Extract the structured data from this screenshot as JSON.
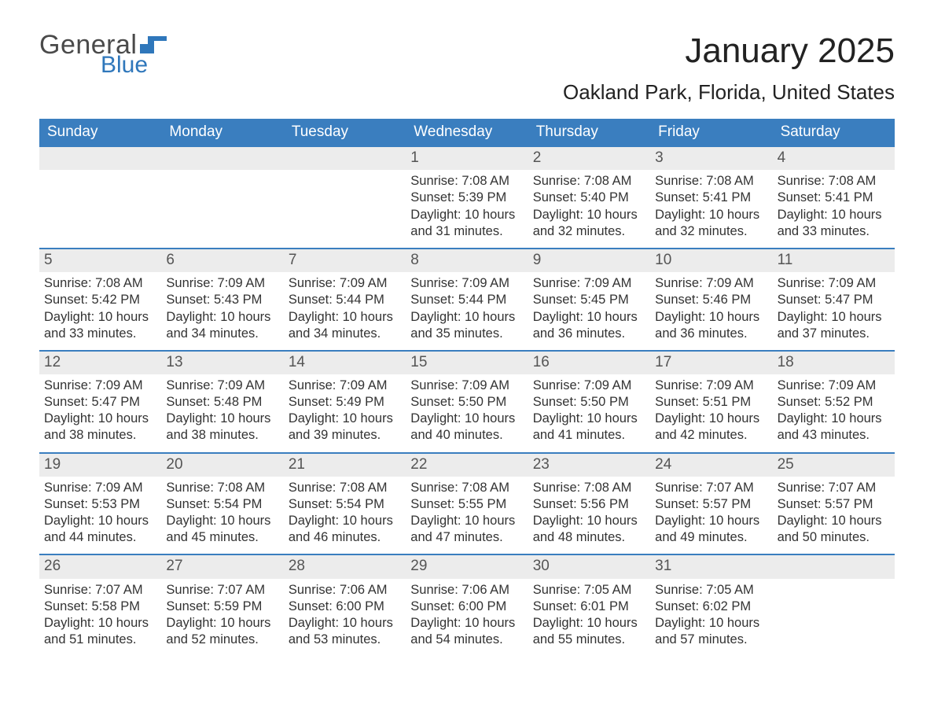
{
  "logo": {
    "word1": "General",
    "word2": "Blue",
    "text_color": "#4a4a4a",
    "accent_color": "#2f77bb"
  },
  "title": "January 2025",
  "location": "Oakland Park, Florida, United States",
  "colors": {
    "header_bg": "#3a7ebf",
    "header_text": "#ffffff",
    "row_divider": "#3a7ebf",
    "daynum_bg": "#ececec",
    "daynum_text": "#555555",
    "body_text": "#333333",
    "page_bg": "#ffffff"
  },
  "fonts": {
    "title_size_pt": 33,
    "location_size_pt": 20,
    "dow_size_pt": 14,
    "body_size_pt": 12
  },
  "days_of_week": [
    "Sunday",
    "Monday",
    "Tuesday",
    "Wednesday",
    "Thursday",
    "Friday",
    "Saturday"
  ],
  "weeks": [
    [
      null,
      null,
      null,
      {
        "n": "1",
        "sr": "Sunrise: 7:08 AM",
        "ss": "Sunset: 5:39 PM",
        "d1": "Daylight: 10 hours",
        "d2": "and 31 minutes."
      },
      {
        "n": "2",
        "sr": "Sunrise: 7:08 AM",
        "ss": "Sunset: 5:40 PM",
        "d1": "Daylight: 10 hours",
        "d2": "and 32 minutes."
      },
      {
        "n": "3",
        "sr": "Sunrise: 7:08 AM",
        "ss": "Sunset: 5:41 PM",
        "d1": "Daylight: 10 hours",
        "d2": "and 32 minutes."
      },
      {
        "n": "4",
        "sr": "Sunrise: 7:08 AM",
        "ss": "Sunset: 5:41 PM",
        "d1": "Daylight: 10 hours",
        "d2": "and 33 minutes."
      }
    ],
    [
      {
        "n": "5",
        "sr": "Sunrise: 7:08 AM",
        "ss": "Sunset: 5:42 PM",
        "d1": "Daylight: 10 hours",
        "d2": "and 33 minutes."
      },
      {
        "n": "6",
        "sr": "Sunrise: 7:09 AM",
        "ss": "Sunset: 5:43 PM",
        "d1": "Daylight: 10 hours",
        "d2": "and 34 minutes."
      },
      {
        "n": "7",
        "sr": "Sunrise: 7:09 AM",
        "ss": "Sunset: 5:44 PM",
        "d1": "Daylight: 10 hours",
        "d2": "and 34 minutes."
      },
      {
        "n": "8",
        "sr": "Sunrise: 7:09 AM",
        "ss": "Sunset: 5:44 PM",
        "d1": "Daylight: 10 hours",
        "d2": "and 35 minutes."
      },
      {
        "n": "9",
        "sr": "Sunrise: 7:09 AM",
        "ss": "Sunset: 5:45 PM",
        "d1": "Daylight: 10 hours",
        "d2": "and 36 minutes."
      },
      {
        "n": "10",
        "sr": "Sunrise: 7:09 AM",
        "ss": "Sunset: 5:46 PM",
        "d1": "Daylight: 10 hours",
        "d2": "and 36 minutes."
      },
      {
        "n": "11",
        "sr": "Sunrise: 7:09 AM",
        "ss": "Sunset: 5:47 PM",
        "d1": "Daylight: 10 hours",
        "d2": "and 37 minutes."
      }
    ],
    [
      {
        "n": "12",
        "sr": "Sunrise: 7:09 AM",
        "ss": "Sunset: 5:47 PM",
        "d1": "Daylight: 10 hours",
        "d2": "and 38 minutes."
      },
      {
        "n": "13",
        "sr": "Sunrise: 7:09 AM",
        "ss": "Sunset: 5:48 PM",
        "d1": "Daylight: 10 hours",
        "d2": "and 38 minutes."
      },
      {
        "n": "14",
        "sr": "Sunrise: 7:09 AM",
        "ss": "Sunset: 5:49 PM",
        "d1": "Daylight: 10 hours",
        "d2": "and 39 minutes."
      },
      {
        "n": "15",
        "sr": "Sunrise: 7:09 AM",
        "ss": "Sunset: 5:50 PM",
        "d1": "Daylight: 10 hours",
        "d2": "and 40 minutes."
      },
      {
        "n": "16",
        "sr": "Sunrise: 7:09 AM",
        "ss": "Sunset: 5:50 PM",
        "d1": "Daylight: 10 hours",
        "d2": "and 41 minutes."
      },
      {
        "n": "17",
        "sr": "Sunrise: 7:09 AM",
        "ss": "Sunset: 5:51 PM",
        "d1": "Daylight: 10 hours",
        "d2": "and 42 minutes."
      },
      {
        "n": "18",
        "sr": "Sunrise: 7:09 AM",
        "ss": "Sunset: 5:52 PM",
        "d1": "Daylight: 10 hours",
        "d2": "and 43 minutes."
      }
    ],
    [
      {
        "n": "19",
        "sr": "Sunrise: 7:09 AM",
        "ss": "Sunset: 5:53 PM",
        "d1": "Daylight: 10 hours",
        "d2": "and 44 minutes."
      },
      {
        "n": "20",
        "sr": "Sunrise: 7:08 AM",
        "ss": "Sunset: 5:54 PM",
        "d1": "Daylight: 10 hours",
        "d2": "and 45 minutes."
      },
      {
        "n": "21",
        "sr": "Sunrise: 7:08 AM",
        "ss": "Sunset: 5:54 PM",
        "d1": "Daylight: 10 hours",
        "d2": "and 46 minutes."
      },
      {
        "n": "22",
        "sr": "Sunrise: 7:08 AM",
        "ss": "Sunset: 5:55 PM",
        "d1": "Daylight: 10 hours",
        "d2": "and 47 minutes."
      },
      {
        "n": "23",
        "sr": "Sunrise: 7:08 AM",
        "ss": "Sunset: 5:56 PM",
        "d1": "Daylight: 10 hours",
        "d2": "and 48 minutes."
      },
      {
        "n": "24",
        "sr": "Sunrise: 7:07 AM",
        "ss": "Sunset: 5:57 PM",
        "d1": "Daylight: 10 hours",
        "d2": "and 49 minutes."
      },
      {
        "n": "25",
        "sr": "Sunrise: 7:07 AM",
        "ss": "Sunset: 5:57 PM",
        "d1": "Daylight: 10 hours",
        "d2": "and 50 minutes."
      }
    ],
    [
      {
        "n": "26",
        "sr": "Sunrise: 7:07 AM",
        "ss": "Sunset: 5:58 PM",
        "d1": "Daylight: 10 hours",
        "d2": "and 51 minutes."
      },
      {
        "n": "27",
        "sr": "Sunrise: 7:07 AM",
        "ss": "Sunset: 5:59 PM",
        "d1": "Daylight: 10 hours",
        "d2": "and 52 minutes."
      },
      {
        "n": "28",
        "sr": "Sunrise: 7:06 AM",
        "ss": "Sunset: 6:00 PM",
        "d1": "Daylight: 10 hours",
        "d2": "and 53 minutes."
      },
      {
        "n": "29",
        "sr": "Sunrise: 7:06 AM",
        "ss": "Sunset: 6:00 PM",
        "d1": "Daylight: 10 hours",
        "d2": "and 54 minutes."
      },
      {
        "n": "30",
        "sr": "Sunrise: 7:05 AM",
        "ss": "Sunset: 6:01 PM",
        "d1": "Daylight: 10 hours",
        "d2": "and 55 minutes."
      },
      {
        "n": "31",
        "sr": "Sunrise: 7:05 AM",
        "ss": "Sunset: 6:02 PM",
        "d1": "Daylight: 10 hours",
        "d2": "and 57 minutes."
      },
      null
    ]
  ]
}
